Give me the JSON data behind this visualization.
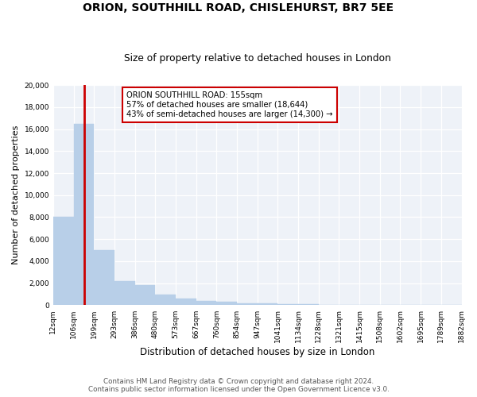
{
  "title": "ORION, SOUTHHILL ROAD, CHISLEHURST, BR7 5EE",
  "subtitle": "Size of property relative to detached houses in London",
  "xlabel": "Distribution of detached houses by size in London",
  "ylabel": "Number of detached properties",
  "property_size": 155,
  "property_label": "ORION SOUTHHILL ROAD: 155sqm",
  "annotation_line1": "57% of detached houses are smaller (18,644)",
  "annotation_line2": "43% of semi-detached houses are larger (14,300) →",
  "ylim": [
    0,
    20000
  ],
  "bar_color": "#b8cfe8",
  "highlight_color": "#cc0000",
  "annotation_box_color": "#ffffff",
  "annotation_box_edge": "#cc0000",
  "footer_line1": "Contains HM Land Registry data © Crown copyright and database right 2024.",
  "footer_line2": "Contains public sector information licensed under the Open Government Licence v3.0.",
  "bin_edges": [
    12,
    106,
    199,
    293,
    386,
    480,
    573,
    667,
    760,
    854,
    947,
    1041,
    1134,
    1228,
    1321,
    1415,
    1508,
    1602,
    1695,
    1789,
    1882
  ],
  "bin_labels": [
    "12sqm",
    "106sqm",
    "199sqm",
    "293sqm",
    "386sqm",
    "480sqm",
    "573sqm",
    "667sqm",
    "760sqm",
    "854sqm",
    "947sqm",
    "1041sqm",
    "1134sqm",
    "1228sqm",
    "1321sqm",
    "1415sqm",
    "1508sqm",
    "1602sqm",
    "1695sqm",
    "1789sqm",
    "1882sqm"
  ],
  "bar_heights": [
    8000,
    16500,
    5000,
    2200,
    1800,
    1000,
    600,
    400,
    300,
    200,
    150,
    100,
    80,
    60,
    40,
    30,
    20,
    15,
    10,
    5
  ]
}
